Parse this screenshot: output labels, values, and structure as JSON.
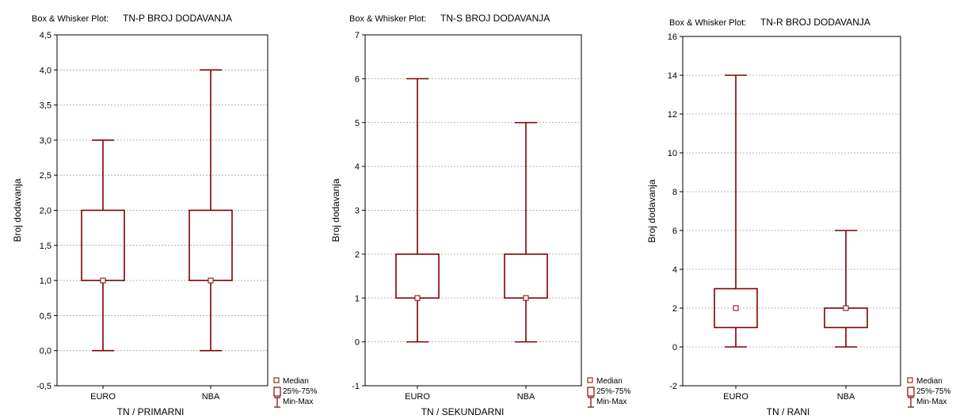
{
  "colors": {
    "box": "#800000",
    "grid": "#a0a0a0",
    "median_fill": "#ffffff",
    "text": "#000000"
  },
  "legend": {
    "median": "Median",
    "iqr": "25%-75%",
    "range": "Min-Max"
  },
  "chart_data": [
    {
      "type": "box",
      "title_prefix": "Box & Whisker Plot:",
      "title": "TN-P  BROJ DODAVANJA",
      "xlabel": "TN / PRIMARNI",
      "ylabel": "Broj dodavanja",
      "ylim": [
        -0.5,
        4.5
      ],
      "yticks": [
        "-0,5",
        "0,0",
        "0,5",
        "1,0",
        "1,5",
        "2,0",
        "2,5",
        "3,0",
        "3,5",
        "4,0",
        "4,5"
      ],
      "ytick_values": [
        -0.5,
        0,
        0.5,
        1,
        1.5,
        2,
        2.5,
        3,
        3.5,
        4,
        4.5
      ],
      "grid": true,
      "legend_position": "bottom-right",
      "categories": [
        "EURO",
        "NBA"
      ],
      "boxes": [
        {
          "category": "EURO",
          "min": 0,
          "q1": 1,
          "median": 1,
          "q3": 2,
          "max": 3
        },
        {
          "category": "NBA",
          "min": 0,
          "q1": 1,
          "median": 1,
          "q3": 2,
          "max": 4
        }
      ]
    },
    {
      "type": "box",
      "title_prefix": "Box & Whisker Plot:",
      "title": "TN-S  BROJ DODAVANJA",
      "xlabel": "TN / SEKUNDARNI",
      "ylabel": "Broj dodavanja",
      "ylim": [
        -1,
        7
      ],
      "yticks": [
        "-1",
        "0",
        "1",
        "2",
        "3",
        "4",
        "5",
        "6",
        "7"
      ],
      "ytick_values": [
        -1,
        0,
        1,
        2,
        3,
        4,
        5,
        6,
        7
      ],
      "grid": true,
      "legend_position": "bottom-right",
      "categories": [
        "EURO",
        "NBA"
      ],
      "boxes": [
        {
          "category": "EURO",
          "min": 0,
          "q1": 1,
          "median": 1,
          "q3": 2,
          "max": 6
        },
        {
          "category": "NBA",
          "min": 0,
          "q1": 1,
          "median": 1,
          "q3": 2,
          "max": 5
        }
      ]
    },
    {
      "type": "box",
      "title_prefix": "Box & Whisker Plot:",
      "title": "TN-R  BROJ DODAVANJA",
      "xlabel": "TN / RANI",
      "ylabel": "Broj dodavanja",
      "ylim": [
        -2,
        16
      ],
      "yticks": [
        "-2",
        "0",
        "2",
        "4",
        "6",
        "8",
        "10",
        "12",
        "14",
        "16"
      ],
      "ytick_values": [
        -2,
        0,
        2,
        4,
        6,
        8,
        10,
        12,
        14,
        16
      ],
      "grid": true,
      "legend_position": "bottom-right",
      "categories": [
        "EURO",
        "NBA"
      ],
      "boxes": [
        {
          "category": "EURO",
          "min": 0,
          "q1": 1,
          "median": 2,
          "q3": 3,
          "max": 14
        },
        {
          "category": "NBA",
          "min": 0,
          "q1": 1,
          "median": 2,
          "q3": 2,
          "max": 6
        }
      ]
    }
  ]
}
